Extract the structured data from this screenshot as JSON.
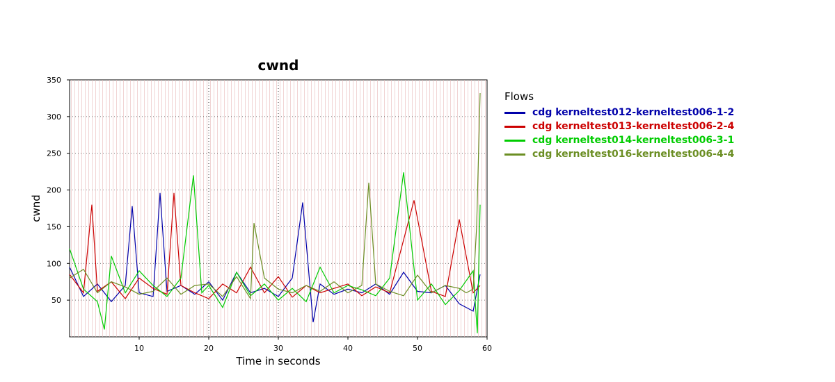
{
  "chart_data": {
    "type": "line",
    "title": "cwnd",
    "xlabel": "Time in seconds",
    "ylabel": "cwnd",
    "xlim": [
      0,
      60
    ],
    "ylim": [
      0,
      350
    ],
    "x_ticks": [
      10,
      20,
      30,
      40,
      50,
      60
    ],
    "y_ticks": [
      50,
      100,
      150,
      200,
      250,
      300,
      350
    ],
    "legend_title": "Flows",
    "legend_position": "right",
    "grid": true,
    "series": [
      {
        "name": "cdg kerneltest012-kerneltest006-1-2",
        "color": "#0000aa",
        "x": [
          0,
          2,
          4,
          6,
          8,
          9,
          10,
          12,
          13,
          14,
          16,
          18,
          20,
          22,
          24,
          26,
          28,
          30,
          32,
          33.5,
          35,
          36,
          38,
          40,
          42,
          44,
          46,
          48,
          50,
          52,
          54,
          56,
          58,
          59
        ],
        "values": [
          95,
          55,
          72,
          48,
          70,
          178,
          60,
          55,
          196,
          62,
          70,
          58,
          75,
          50,
          88,
          60,
          66,
          55,
          80,
          183,
          20,
          72,
          58,
          65,
          60,
          72,
          58,
          88,
          62,
          60,
          70,
          45,
          35,
          85
        ]
      },
      {
        "name": "cdg kerneltest013-kerneltest006-2-4",
        "color": "#cc0000",
        "x": [
          0,
          2,
          3.2,
          4,
          6,
          8,
          10,
          12,
          14,
          15,
          16,
          18,
          20,
          22,
          24,
          26,
          28,
          30,
          32,
          34,
          36,
          38,
          40,
          42,
          44,
          46,
          49.5,
          52,
          54,
          56,
          58,
          59
        ],
        "values": [
          85,
          60,
          180,
          62,
          75,
          52,
          80,
          66,
          58,
          196,
          70,
          60,
          52,
          72,
          60,
          95,
          60,
          82,
          54,
          70,
          60,
          66,
          72,
          56,
          68,
          60,
          186,
          62,
          55,
          160,
          60,
          70
        ]
      },
      {
        "name": "cdg kerneltest014-kerneltest006-3-1",
        "color": "#00cc00",
        "x": [
          0,
          2,
          4,
          5,
          6,
          8,
          10,
          12,
          14,
          16,
          17.8,
          19,
          20,
          22,
          24,
          26,
          28,
          30,
          32,
          34,
          36,
          38,
          40,
          42,
          44,
          46,
          48,
          50,
          52,
          54,
          56,
          58,
          58.6,
          59
        ],
        "values": [
          120,
          65,
          48,
          10,
          110,
          60,
          90,
          70,
          55,
          80,
          220,
          60,
          70,
          40,
          88,
          56,
          72,
          50,
          66,
          48,
          95,
          60,
          70,
          64,
          56,
          80,
          224,
          50,
          72,
          44,
          63,
          90,
          5,
          180
        ]
      },
      {
        "name": "cdg kerneltest016-kerneltest006-4-4",
        "color": "#6b8e23",
        "x": [
          0,
          2,
          4,
          6,
          8,
          10,
          12,
          14,
          16,
          18,
          20,
          22,
          24,
          26,
          26.5,
          28,
          30,
          32,
          34,
          36,
          38,
          40,
          42,
          43,
          44,
          46,
          48,
          50,
          52,
          54,
          56,
          57,
          58,
          58.5,
          59
        ],
        "values": [
          80,
          92,
          60,
          75,
          68,
          58,
          62,
          80,
          58,
          70,
          72,
          55,
          82,
          52,
          155,
          80,
          65,
          60,
          70,
          62,
          75,
          60,
          70,
          210,
          72,
          62,
          56,
          84,
          60,
          70,
          66,
          60,
          65,
          150,
          332
        ]
      }
    ]
  }
}
